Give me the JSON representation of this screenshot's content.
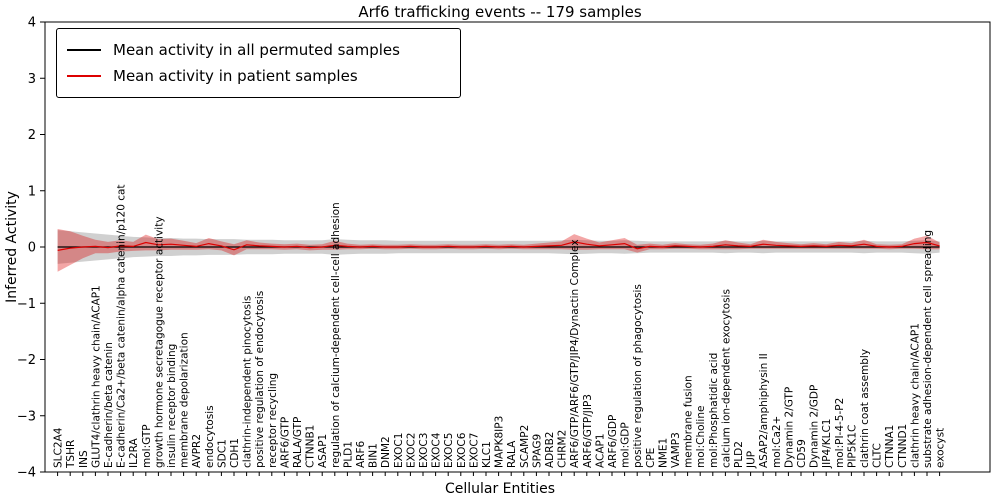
{
  "title": "Arf6 trafficking events -- 179 samples",
  "xlabel": "Cellular Entities",
  "ylabel": "Inferred Activity",
  "legend": {
    "permuted": "Mean activity in all permuted samples",
    "patient": "Mean activity in patient samples"
  },
  "y_ticks": [
    {
      "value": 4,
      "label": "4"
    },
    {
      "value": 3,
      "label": "3"
    },
    {
      "value": 2,
      "label": "2"
    },
    {
      "value": 1,
      "label": "1"
    },
    {
      "value": 0,
      "label": "0"
    },
    {
      "value": -1,
      "label": "−1"
    },
    {
      "value": -2,
      "label": "−2"
    },
    {
      "value": -3,
      "label": "−3"
    },
    {
      "value": -4,
      "label": "−4"
    }
  ],
  "chart_data": {
    "type": "line",
    "title": "Arf6 trafficking events -- 179 samples",
    "xlabel": "Cellular Entities",
    "ylabel": "Inferred Activity",
    "ylim": [
      -4,
      4
    ],
    "grid": false,
    "legend_position": "upper left",
    "categories": [
      "SLC2A4",
      "TSHR",
      "INS",
      "GLUT4/clathrin heavy chain/ACAP1",
      "E-cadherin/beta catenin",
      "E-cadherin/Ca2+/beta catenin/alpha catenin/p120 cat",
      "IL2RA",
      "mol:GTP",
      "growth hormone secretagogue receptor activity",
      "insulin receptor binding",
      "membrane depolarization",
      "AVPR2",
      "endocytosis",
      "SDC1",
      "CDH1",
      "clathrin-independent pinocytosis",
      "positive regulation of endocytosis",
      "receptor recycling",
      "ARF6/GTP",
      "RALA/GTP",
      "CTNNB1",
      "ASAP1",
      "regulation of calcium-dependent cell-cell adhesion",
      "PLD1",
      "ARF6",
      "BIN1",
      "DNM2",
      "EXOC1",
      "EXOC2",
      "EXOC3",
      "EXOC4",
      "EXOC5",
      "EXOC6",
      "EXOC7",
      "KLC1",
      "MAPK8IP3",
      "RALA",
      "SCAMP2",
      "SPAG9",
      "ADRB2",
      "CHRM2",
      "ARF6/GTP/ARF6/GTP/JIP4/Dynactin Complex",
      "ARF6/GTP/JIP3",
      "ACAP1",
      "ARF6/GDP",
      "mol:GDP",
      "positive regulation of phagocytosis",
      "CPE",
      "NME1",
      "VAMP3",
      "membrane fusion",
      "mol:Choline",
      "mol:Phosphatidic acid",
      "calcium ion-dependent exocytosis",
      "PLD2",
      "JUP",
      "ASAP2/amphiphysin II",
      "mol:Ca2+",
      "Dynamin 2/GTP",
      "CD59",
      "Dynamin 2/GDP",
      "JIP4/KLC1",
      "mol:PI-4-5-P2",
      "PIP5K1C",
      "clathrin coat assembly",
      "CLTC",
      "CTNNA1",
      "CTNND1",
      "clathrin heavy chain/ACAP1",
      "substrate adhesion-dependent cell spreading",
      "exocyst"
    ],
    "series": [
      {
        "key": "permuted",
        "name": "Mean activity in all permuted samples",
        "color": "#000000",
        "band_color": "rgba(120,120,120,0.35)",
        "mean": [
          0,
          0,
          0,
          0,
          0,
          0,
          0,
          0,
          0,
          0,
          0,
          0,
          0,
          0,
          0,
          0,
          0,
          0,
          0,
          0,
          0,
          0,
          0,
          0,
          0,
          0,
          0,
          0,
          0,
          0,
          0,
          0,
          0,
          0,
          0,
          0,
          0,
          0,
          0,
          0,
          0,
          0,
          0,
          0,
          0,
          0,
          0,
          0,
          0,
          0,
          0,
          0,
          0,
          0,
          0,
          0,
          0,
          0,
          0,
          0,
          0,
          0,
          0,
          0,
          0,
          0,
          0,
          0,
          0,
          0,
          0
        ],
        "band": [
          0.3,
          0.28,
          0.26,
          0.24,
          0.22,
          0.2,
          0.18,
          0.17,
          0.16,
          0.16,
          0.15,
          0.15,
          0.14,
          0.14,
          0.14,
          0.13,
          0.13,
          0.13,
          0.12,
          0.12,
          0.12,
          0.12,
          0.14,
          0.13,
          0.12,
          0.12,
          0.12,
          0.11,
          0.11,
          0.11,
          0.11,
          0.11,
          0.11,
          0.11,
          0.11,
          0.11,
          0.11,
          0.11,
          0.11,
          0.11,
          0.12,
          0.13,
          0.12,
          0.11,
          0.11,
          0.12,
          0.11,
          0.1,
          0.1,
          0.1,
          0.1,
          0.1,
          0.1,
          0.11,
          0.1,
          0.1,
          0.11,
          0.1,
          0.1,
          0.1,
          0.1,
          0.1,
          0.1,
          0.1,
          0.11,
          0.1,
          0.1,
          0.1,
          0.11,
          0.12,
          0.1
        ]
      },
      {
        "key": "patient",
        "name": "Mean activity in patient samples",
        "color": "#dd0000",
        "band_color": "rgba(221,0,0,0.35)",
        "mean": [
          -0.06,
          -0.02,
          0.0,
          0.01,
          -0.01,
          0.02,
          0.01,
          0.08,
          0.04,
          0.05,
          0.03,
          0.01,
          0.06,
          0.02,
          -0.05,
          0.04,
          0.02,
          0.01,
          0.0,
          0.01,
          -0.01,
          0.0,
          0.03,
          0.01,
          0.0,
          0.01,
          0.0,
          0.0,
          0.01,
          0.0,
          0.0,
          0.01,
          0.0,
          0.0,
          0.01,
          0.0,
          0.01,
          0.0,
          0.01,
          0.02,
          0.03,
          0.09,
          0.05,
          0.02,
          0.04,
          0.06,
          -0.03,
          0.01,
          0.0,
          0.02,
          0.01,
          0.0,
          0.01,
          0.04,
          0.02,
          0.01,
          0.05,
          0.03,
          0.02,
          0.01,
          0.02,
          0.01,
          0.03,
          0.02,
          0.05,
          0.01,
          0.0,
          0.01,
          0.06,
          0.08,
          0.02
        ],
        "band": [
          0.38,
          0.3,
          0.2,
          0.12,
          0.1,
          0.1,
          0.08,
          0.14,
          0.1,
          0.1,
          0.08,
          0.06,
          0.1,
          0.08,
          0.1,
          0.08,
          0.06,
          0.05,
          0.05,
          0.05,
          0.05,
          0.05,
          0.08,
          0.05,
          0.04,
          0.04,
          0.04,
          0.04,
          0.04,
          0.04,
          0.04,
          0.04,
          0.04,
          0.04,
          0.04,
          0.04,
          0.04,
          0.04,
          0.05,
          0.06,
          0.07,
          0.14,
          0.1,
          0.06,
          0.08,
          0.1,
          0.07,
          0.05,
          0.04,
          0.05,
          0.04,
          0.04,
          0.05,
          0.08,
          0.06,
          0.04,
          0.08,
          0.06,
          0.05,
          0.04,
          0.05,
          0.04,
          0.06,
          0.05,
          0.08,
          0.04,
          0.04,
          0.04,
          0.09,
          0.12,
          0.06
        ]
      }
    ]
  }
}
